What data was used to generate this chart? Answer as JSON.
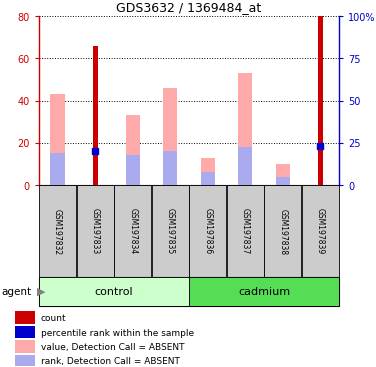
{
  "title": "GDS3632 / 1369484_at",
  "samples": [
    "GSM197832",
    "GSM197833",
    "GSM197834",
    "GSM197835",
    "GSM197836",
    "GSM197837",
    "GSM197838",
    "GSM197839"
  ],
  "red_bar_values": [
    0,
    66,
    0,
    0,
    0,
    0,
    0,
    80
  ],
  "blue_dot_values": [
    0,
    20,
    0,
    0,
    0,
    0,
    0,
    23
  ],
  "pink_bar_values": [
    43,
    0,
    33,
    46,
    13,
    53,
    10,
    0
  ],
  "lavender_bar_values": [
    15,
    0,
    14,
    16,
    6,
    18,
    4,
    0
  ],
  "ylim_left": [
    0,
    80
  ],
  "ylim_right": [
    0,
    100
  ],
  "yticks_left": [
    0,
    20,
    40,
    60,
    80
  ],
  "yticks_right": [
    0,
    25,
    50,
    75,
    100
  ],
  "yticklabels_right": [
    "0",
    "25",
    "50",
    "75",
    "100%"
  ],
  "red_color": "#cc0000",
  "blue_color": "#0000cc",
  "pink_color": "#ffaaaa",
  "lavender_color": "#aaaaee",
  "sample_box_color": "#cccccc",
  "control_color": "#ccffcc",
  "cadmium_color": "#55dd55",
  "agent_label": "agent",
  "legend_entries": [
    [
      "count",
      "#cc0000"
    ],
    [
      "percentile rank within the sample",
      "#0000cc"
    ],
    [
      "value, Detection Call = ABSENT",
      "#ffaaaa"
    ],
    [
      "rank, Detection Call = ABSENT",
      "#aaaaee"
    ]
  ]
}
